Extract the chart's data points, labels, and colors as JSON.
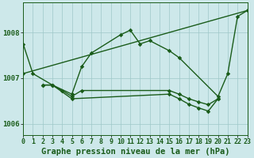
{
  "title": "Graphe pression niveau de la mer (hPa)",
  "x_labels": [
    "0",
    "1",
    "2",
    "3",
    "4",
    "5",
    "6",
    "7",
    "8",
    "9",
    "10",
    "11",
    "12",
    "13",
    "14",
    "15",
    "16",
    "17",
    "18",
    "19",
    "20",
    "21",
    "22",
    "23"
  ],
  "xlim": [
    0,
    23
  ],
  "ylim": [
    1005.75,
    1008.65
  ],
  "yticks": [
    1006,
    1007,
    1008
  ],
  "bg_color": "#cde8ea",
  "grid_color": "#9ec8c8",
  "line_color": "#1a5c1a",
  "series": [
    {
      "x": [
        0,
        1,
        3,
        5,
        6,
        7,
        10,
        11,
        12,
        13,
        15,
        16,
        20,
        21,
        22,
        23
      ],
      "y": [
        1007.75,
        1007.1,
        1006.85,
        1006.65,
        1007.25,
        1007.55,
        1007.95,
        1008.05,
        1007.75,
        1007.8,
        1007.6,
        1007.45,
        1006.6,
        1007.1,
        1008.35,
        1008.45
      ]
    },
    {
      "x": [
        0,
        3,
        23
      ],
      "y": [
        1007.1,
        1006.85,
        1008.45
      ]
    },
    {
      "x": [
        2,
        3,
        4,
        5,
        6,
        15,
        16,
        17,
        18,
        19,
        20
      ],
      "y": [
        1006.85,
        1006.85,
        1006.75,
        1006.6,
        1006.75,
        1006.75,
        1006.65,
        1006.55,
        1006.5,
        1006.45,
        1006.55
      ]
    },
    {
      "x": [
        2,
        3,
        5,
        15,
        16,
        17,
        18,
        19,
        20
      ],
      "y": [
        1006.85,
        1006.85,
        1006.55,
        1006.65,
        1006.55,
        1006.45,
        1006.35,
        1006.28,
        1006.55
      ]
    }
  ],
  "marker_size": 2.8,
  "line_width": 1.0,
  "title_fontsize": 7.5,
  "tick_fontsize": 6.0,
  "label_fontsize": 7.5
}
